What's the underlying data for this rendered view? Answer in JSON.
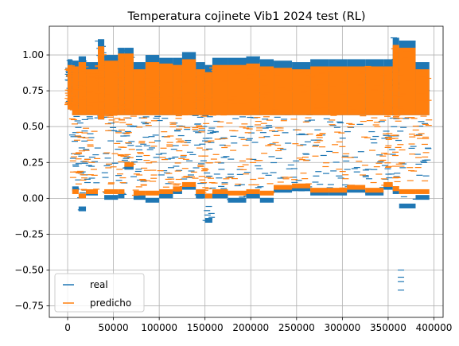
{
  "chart_data": {
    "type": "scatter",
    "title": "Temperatura cojinete Vib1 2024 test (RL)",
    "xlabel": "",
    "ylabel": "",
    "xlim": [
      -20000,
      410000
    ],
    "ylim": [
      -0.83,
      1.2
    ],
    "x_ticks": [
      0,
      50000,
      100000,
      150000,
      200000,
      250000,
      300000,
      350000,
      400000
    ],
    "x_tick_labels": [
      "0",
      "50000",
      "100000",
      "150000",
      "200000",
      "250000",
      "300000",
      "350000",
      "400000"
    ],
    "y_ticks": [
      -0.75,
      -0.5,
      -0.25,
      0.0,
      0.25,
      0.5,
      0.75,
      1.0
    ],
    "y_tick_labels": [
      "−0.75",
      "−0.50",
      "−0.25",
      "0.00",
      "0.25",
      "0.50",
      "0.75",
      "1.00"
    ],
    "grid": true,
    "marker": "_",
    "legend_position": "lower-left",
    "series": [
      {
        "name": "real",
        "color": "#1f77b4",
        "segments": [
          {
            "x0": 0,
            "x1": 5000,
            "ymin": 0.62,
            "ymax": 0.97
          },
          {
            "x0": 5000,
            "x1": 12000,
            "ymin": 0.05,
            "ymax": 0.96
          },
          {
            "x0": 12000,
            "x1": 20000,
            "ymin": -0.09,
            "ymax": 0.99
          },
          {
            "x0": 20000,
            "x1": 33000,
            "ymin": 0.02,
            "ymax": 0.95
          },
          {
            "x0": 33000,
            "x1": 40000,
            "ymin": 0.55,
            "ymax": 1.11
          },
          {
            "x0": 40000,
            "x1": 55000,
            "ymin": -0.01,
            "ymax": 1.0
          },
          {
            "x0": 55000,
            "x1": 62000,
            "ymin": 0.0,
            "ymax": 1.05
          },
          {
            "x0": 62000,
            "x1": 72000,
            "ymin": 0.2,
            "ymax": 1.05
          },
          {
            "x0": 72000,
            "x1": 85000,
            "ymin": -0.01,
            "ymax": 0.95
          },
          {
            "x0": 85000,
            "x1": 100000,
            "ymin": -0.03,
            "ymax": 1.0
          },
          {
            "x0": 100000,
            "x1": 115000,
            "ymin": 0.0,
            "ymax": 0.98
          },
          {
            "x0": 115000,
            "x1": 125000,
            "ymin": 0.03,
            "ymax": 0.98
          },
          {
            "x0": 125000,
            "x1": 140000,
            "ymin": 0.06,
            "ymax": 1.02
          },
          {
            "x0": 140000,
            "x1": 150000,
            "ymin": 0.0,
            "ymax": 0.95
          },
          {
            "x0": 150000,
            "x1": 158000,
            "ymin": -0.17,
            "ymax": 0.93
          },
          {
            "x0": 158000,
            "x1": 175000,
            "ymin": 0.0,
            "ymax": 0.98
          },
          {
            "x0": 175000,
            "x1": 195000,
            "ymin": -0.03,
            "ymax": 0.98
          },
          {
            "x0": 195000,
            "x1": 210000,
            "ymin": 0.0,
            "ymax": 0.99
          },
          {
            "x0": 210000,
            "x1": 225000,
            "ymin": -0.03,
            "ymax": 0.97
          },
          {
            "x0": 225000,
            "x1": 245000,
            "ymin": 0.04,
            "ymax": 0.96
          },
          {
            "x0": 245000,
            "x1": 265000,
            "ymin": 0.05,
            "ymax": 0.95
          },
          {
            "x0": 265000,
            "x1": 285000,
            "ymin": 0.02,
            "ymax": 0.97
          },
          {
            "x0": 285000,
            "x1": 305000,
            "ymin": 0.02,
            "ymax": 0.97
          },
          {
            "x0": 305000,
            "x1": 325000,
            "ymin": 0.04,
            "ymax": 0.97
          },
          {
            "x0": 325000,
            "x1": 345000,
            "ymin": 0.02,
            "ymax": 0.97
          },
          {
            "x0": 345000,
            "x1": 355000,
            "ymin": 0.06,
            "ymax": 0.97
          },
          {
            "x0": 355000,
            "x1": 362000,
            "ymin": 0.03,
            "ymax": 1.12
          },
          {
            "x0": 362000,
            "x1": 380000,
            "ymin": -0.07,
            "ymax": 1.1
          },
          {
            "x0": 380000,
            "x1": 395000,
            "ymin": -0.01,
            "ymax": 0.95
          }
        ],
        "outliers": [
          {
            "x": 364000,
            "y": -0.5
          },
          {
            "x": 364000,
            "y": -0.55
          },
          {
            "x": 364000,
            "y": -0.58
          },
          {
            "x": 364000,
            "y": -0.64
          }
        ]
      },
      {
        "name": "predicho",
        "color": "#ff7f0e",
        "segments": [
          {
            "x0": 0,
            "x1": 5000,
            "ymin": 0.62,
            "ymax": 0.93
          },
          {
            "x0": 5000,
            "x1": 12000,
            "ymin": 0.03,
            "ymax": 0.92
          },
          {
            "x0": 12000,
            "x1": 20000,
            "ymin": 0.0,
            "ymax": 0.95
          },
          {
            "x0": 20000,
            "x1": 33000,
            "ymin": 0.03,
            "ymax": 0.9
          },
          {
            "x0": 33000,
            "x1": 40000,
            "ymin": 0.55,
            "ymax": 1.06
          },
          {
            "x0": 40000,
            "x1": 55000,
            "ymin": 0.03,
            "ymax": 0.96
          },
          {
            "x0": 55000,
            "x1": 62000,
            "ymin": 0.03,
            "ymax": 1.01
          },
          {
            "x0": 62000,
            "x1": 72000,
            "ymin": 0.22,
            "ymax": 1.01
          },
          {
            "x0": 72000,
            "x1": 85000,
            "ymin": 0.02,
            "ymax": 0.9
          },
          {
            "x0": 85000,
            "x1": 100000,
            "ymin": 0.02,
            "ymax": 0.95
          },
          {
            "x0": 100000,
            "x1": 115000,
            "ymin": 0.03,
            "ymax": 0.94
          },
          {
            "x0": 115000,
            "x1": 125000,
            "ymin": 0.05,
            "ymax": 0.93
          },
          {
            "x0": 125000,
            "x1": 140000,
            "ymin": 0.08,
            "ymax": 0.97
          },
          {
            "x0": 140000,
            "x1": 150000,
            "ymin": 0.03,
            "ymax": 0.9
          },
          {
            "x0": 150000,
            "x1": 158000,
            "ymin": 0.0,
            "ymax": 0.88
          },
          {
            "x0": 158000,
            "x1": 175000,
            "ymin": 0.03,
            "ymax": 0.93
          },
          {
            "x0": 175000,
            "x1": 195000,
            "ymin": 0.02,
            "ymax": 0.93
          },
          {
            "x0": 195000,
            "x1": 210000,
            "ymin": 0.03,
            "ymax": 0.94
          },
          {
            "x0": 210000,
            "x1": 225000,
            "ymin": 0.02,
            "ymax": 0.92
          },
          {
            "x0": 225000,
            "x1": 245000,
            "ymin": 0.06,
            "ymax": 0.91
          },
          {
            "x0": 245000,
            "x1": 265000,
            "ymin": 0.07,
            "ymax": 0.9
          },
          {
            "x0": 265000,
            "x1": 285000,
            "ymin": 0.04,
            "ymax": 0.92
          },
          {
            "x0": 285000,
            "x1": 305000,
            "ymin": 0.04,
            "ymax": 0.92
          },
          {
            "x0": 305000,
            "x1": 325000,
            "ymin": 0.06,
            "ymax": 0.92
          },
          {
            "x0": 325000,
            "x1": 345000,
            "ymin": 0.04,
            "ymax": 0.92
          },
          {
            "x0": 345000,
            "x1": 355000,
            "ymin": 0.08,
            "ymax": 0.92
          },
          {
            "x0": 355000,
            "x1": 362000,
            "ymin": 0.05,
            "ymax": 1.07
          },
          {
            "x0": 362000,
            "x1": 380000,
            "ymin": 0.03,
            "ymax": 1.05
          },
          {
            "x0": 380000,
            "x1": 395000,
            "ymin": 0.03,
            "ymax": 0.9
          }
        ],
        "outliers": []
      }
    ]
  }
}
